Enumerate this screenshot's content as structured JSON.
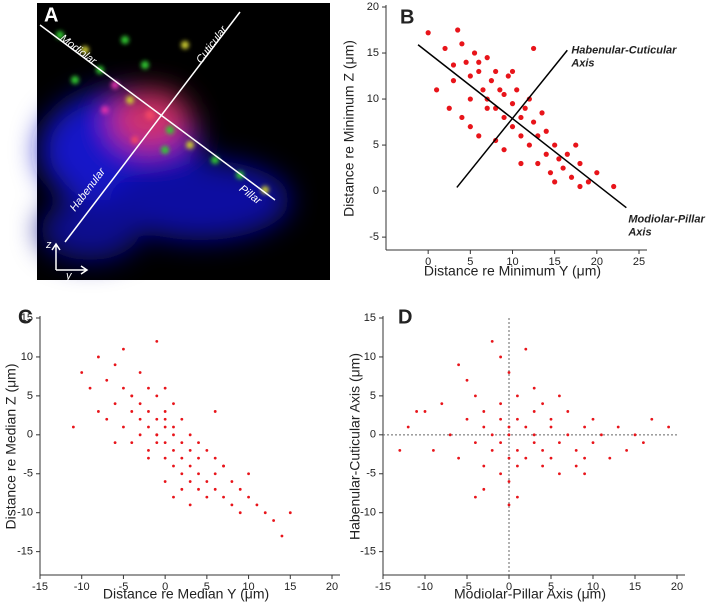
{
  "panel_a": {
    "label": "A",
    "axis_labels": [
      "Modiolar",
      "Cuticular",
      "Habenular",
      "Pillar"
    ],
    "compass": [
      "z",
      "y"
    ]
  },
  "chart_data": [
    {
      "type": "scatter",
      "panel_label": "B",
      "x_label": "Distance re Minimum Y (μm)",
      "y_label": "Distance re Minimum Z (μm)",
      "color": "#e8141a",
      "xlim": [
        -5,
        25
      ],
      "ylim": [
        -6.4,
        20
      ],
      "xticks": [
        0,
        5,
        10,
        15,
        20,
        25
      ],
      "yticks": [
        -5,
        0,
        5,
        10,
        15,
        20
      ],
      "x": [
        0,
        2,
        3,
        3.5,
        4,
        4.5,
        5,
        5.5,
        6,
        6.5,
        7,
        7,
        7.5,
        8,
        8,
        8.5,
        9,
        9,
        9.5,
        10,
        10,
        10.5,
        11,
        11,
        11.5,
        12,
        12.5,
        12.5,
        13,
        13,
        13.5,
        14,
        14,
        14.5,
        15,
        15,
        15.5,
        16,
        16.5,
        17,
        17.5,
        18,
        18,
        19,
        20,
        22,
        1,
        2.5,
        4,
        5,
        6,
        7,
        5,
        3,
        9,
        12,
        10,
        6,
        11,
        8
      ],
      "y": [
        17.2,
        15.5,
        13.7,
        17.5,
        16,
        14,
        12.5,
        15,
        13,
        11,
        14.5,
        10,
        12,
        9,
        13,
        11,
        10.5,
        8,
        12.5,
        9.5,
        7,
        11,
        8,
        6,
        9,
        5,
        15.5,
        7.5,
        6,
        3,
        8.5,
        4,
        6.5,
        2,
        5,
        1,
        3.5,
        2.5,
        4,
        1.5,
        5,
        0.5,
        3,
        1,
        2,
        0.5,
        11,
        9,
        8,
        7,
        6,
        9,
        10,
        12,
        4.5,
        10,
        13,
        14,
        3,
        5.5
      ],
      "lines": [
        {
          "label": "Habenular-Cuticular Axis",
          "x": [
            3.4,
            16.5
          ],
          "y": [
            0.4,
            15.3
          ]
        },
        {
          "label": "Modiolar-Pillar Axis",
          "x": [
            -1.2,
            23.5
          ],
          "y": [
            15.9,
            -1.8
          ]
        }
      ]
    },
    {
      "type": "scatter",
      "panel_label": "C",
      "x_label": "Distance re Median Y (μm)",
      "y_label": "Distance re Median Z (μm)",
      "color": "#e8141a",
      "xlim": [
        -15,
        20
      ],
      "ylim": [
        -18,
        15
      ],
      "xticks": [
        -15,
        -10,
        -5,
        0,
        5,
        10,
        15,
        20
      ],
      "yticks": [
        -15,
        -10,
        -5,
        0,
        5,
        10,
        15
      ],
      "x": [
        -10,
        -9,
        -8,
        -8,
        -7,
        -7,
        -6,
        -6,
        -5,
        -5,
        -5,
        -4,
        -4,
        -4,
        -3,
        -3,
        -3,
        -3,
        -2,
        -2,
        -2,
        -2,
        -1,
        -1,
        -1,
        -1,
        -1,
        0,
        0,
        0,
        0,
        0,
        0,
        1,
        1,
        1,
        1,
        1,
        2,
        2,
        2,
        2,
        3,
        3,
        3,
        3,
        4,
        4,
        4,
        5,
        5,
        5,
        6,
        6,
        6,
        7,
        7,
        8,
        8,
        9,
        9,
        10,
        10,
        11,
        12,
        13,
        14,
        15,
        -11,
        -6,
        -2,
        0,
        2,
        4,
        6,
        -4,
        1,
        3,
        -1,
        7
      ],
      "y": [
        8,
        6,
        10,
        3,
        7,
        2,
        9,
        4,
        6,
        1,
        11,
        5,
        -1,
        3,
        8,
        2,
        0,
        4,
        6,
        -2,
        1,
        3,
        5,
        -1,
        2,
        0,
        12,
        -3,
        1,
        3,
        -1,
        2,
        6,
        0,
        -2,
        1,
        -4,
        4,
        -3,
        -1,
        2,
        -5,
        -4,
        0,
        -2,
        -6,
        -5,
        -3,
        -7,
        -6,
        -2,
        -8,
        -5,
        -7,
        -3,
        -8,
        -4,
        -9,
        -6,
        -7,
        -10,
        -8,
        -5,
        -9,
        -10,
        -11,
        -13,
        -10,
        1,
        -1,
        -3,
        -6,
        -7,
        -1,
        3,
        5,
        -8,
        -9,
        0,
        -4
      ]
    },
    {
      "type": "scatter",
      "panel_label": "D",
      "x_label": "Modiolar-Pillar Axis (μm)",
      "y_label": "Habenular-Cuticular Axis (μm)",
      "color": "#e8141a",
      "xlim": [
        -15,
        20
      ],
      "ylim": [
        -18,
        15
      ],
      "xticks": [
        -15,
        -10,
        -5,
        0,
        5,
        10,
        15,
        20
      ],
      "yticks": [
        -15,
        -10,
        -5,
        0,
        5,
        10,
        15
      ],
      "ref_lines": {
        "x": 0,
        "y": 0
      },
      "x": [
        -12,
        -10,
        -9,
        -8,
        -7,
        -6,
        -5,
        -5,
        -4,
        -4,
        -3,
        -3,
        -3,
        -2,
        -2,
        -2,
        -1,
        -1,
        -1,
        -1,
        0,
        0,
        0,
        0,
        0,
        1,
        1,
        1,
        1,
        2,
        2,
        2,
        3,
        3,
        3,
        4,
        4,
        4,
        5,
        5,
        5,
        6,
        6,
        7,
        7,
        8,
        8,
        9,
        9,
        10,
        10,
        11,
        12,
        13,
        14,
        15,
        16,
        17,
        19,
        -13,
        -11,
        -6,
        -3,
        -1,
        1,
        3,
        6,
        9,
        -4,
        0
      ],
      "y": [
        1,
        3,
        -2,
        4,
        0,
        -3,
        2,
        7,
        -1,
        5,
        1,
        -4,
        3,
        0,
        -2,
        12,
        2,
        -5,
        4,
        -1,
        1,
        -3,
        8,
        0,
        -6,
        2,
        -2,
        5,
        -4,
        1,
        -3,
        11,
        0,
        -1,
        3,
        -2,
        4,
        -4,
        1,
        -3,
        2,
        -1,
        -5,
        0,
        3,
        -2,
        -4,
        1,
        -3,
        2,
        -1,
        0,
        -3,
        1,
        -2,
        0,
        -1,
        2,
        1,
        -2,
        3,
        9,
        -7,
        10,
        -8,
        6,
        5,
        -5,
        -8,
        -9
      ]
    }
  ]
}
